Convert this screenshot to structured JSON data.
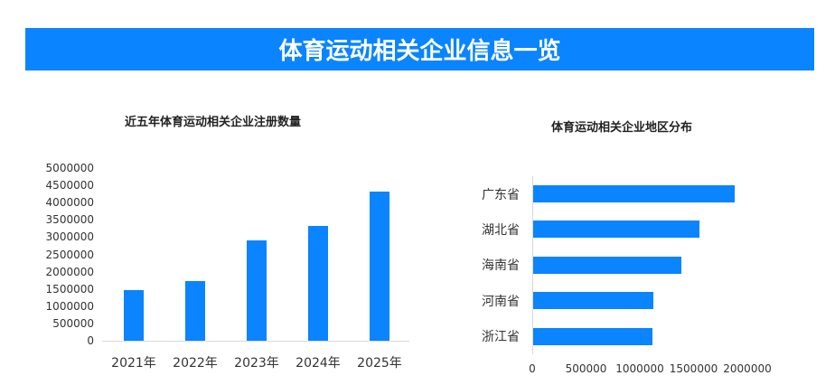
{
  "header": {
    "title": "体育运动相关企业信息一览"
  },
  "colors": {
    "accent": "#0A84FF",
    "axis": "#d9d9d9",
    "text": "#333333"
  },
  "chart_data": [
    {
      "type": "bar",
      "title": "近五年体育运动相关企业注册数量",
      "categories": [
        "2021年",
        "2022年",
        "2023年",
        "2024年",
        "2025年"
      ],
      "values": [
        1470000,
        1730000,
        2910000,
        3320000,
        4320000
      ],
      "xlabel": "",
      "ylabel": "",
      "ylim": [
        0,
        5000000
      ],
      "yticks": [
        "0",
        "500000",
        "1000000",
        "1500000",
        "2000000",
        "2500000",
        "3000000",
        "3500000",
        "4000000",
        "4500000",
        "5000000"
      ],
      "grid": false,
      "legend": null
    },
    {
      "type": "bar",
      "orientation": "horizontal",
      "title": "体育运动相关企业地区分布",
      "categories": [
        "广东省",
        "湖北省",
        "海南省",
        "河南省",
        "浙江省"
      ],
      "values": [
        1870000,
        1550000,
        1380000,
        1120000,
        1110000
      ],
      "xlabel": "",
      "ylabel": "",
      "xlim": [
        0,
        2000000
      ],
      "xticks": [
        "0",
        "500000",
        "1000000",
        "1500000",
        "2000000"
      ],
      "grid": false,
      "legend": null
    }
  ]
}
